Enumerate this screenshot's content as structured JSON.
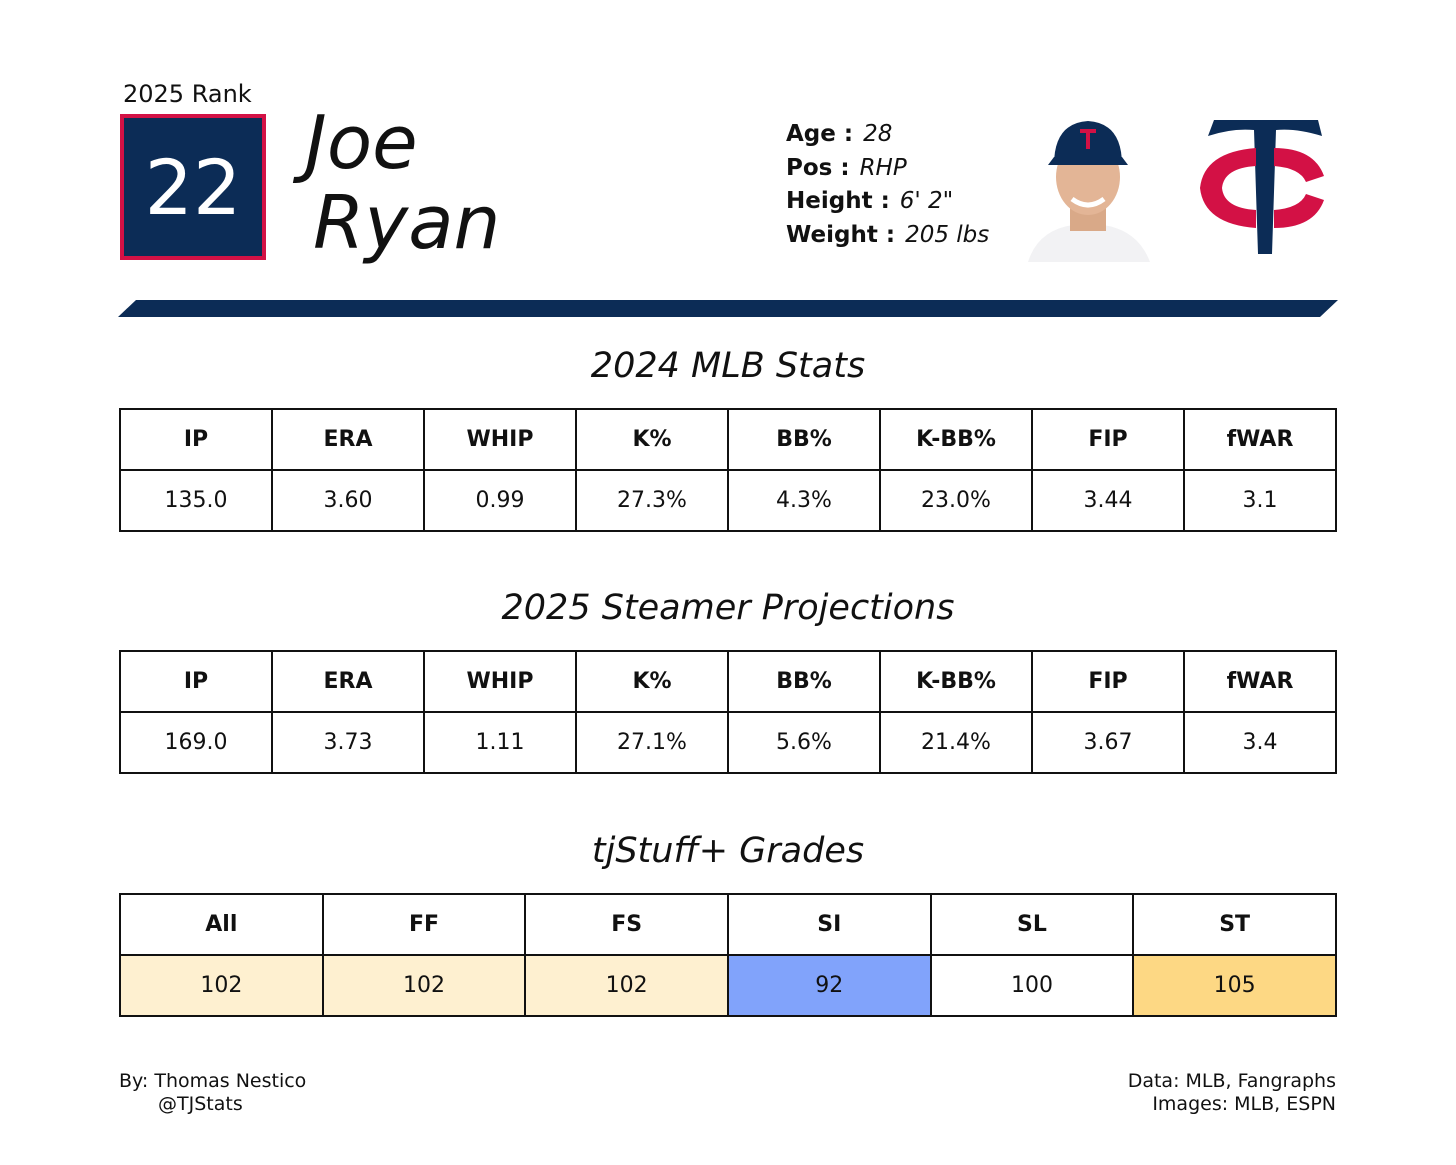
{
  "header": {
    "rank_label": "2025 Rank",
    "rank": "22",
    "first_name": "Joe",
    "last_name": "Ryan",
    "bio": [
      {
        "label": "Age :",
        "value": "28"
      },
      {
        "label": "Pos :",
        "value": "RHP"
      },
      {
        "label": "Height :",
        "value": "6' 2\""
      },
      {
        "label": "Weight :",
        "value": "205 lbs"
      }
    ]
  },
  "sections": [
    {
      "title": "2024 MLB Stats",
      "columns": [
        "IP",
        "ERA",
        "WHIP",
        "K%",
        "BB%",
        "K-BB%",
        "FIP",
        "fWAR"
      ],
      "row": [
        "135.0",
        "3.60",
        "0.99",
        "27.3%",
        "4.3%",
        "23.0%",
        "3.44",
        "3.1"
      ]
    },
    {
      "title": "2025 Steamer Projections",
      "columns": [
        "IP",
        "ERA",
        "WHIP",
        "K%",
        "BB%",
        "K-BB%",
        "FIP",
        "fWAR"
      ],
      "row": [
        "169.0",
        "3.73",
        "1.11",
        "27.1%",
        "5.6%",
        "21.4%",
        "3.67",
        "3.4"
      ]
    },
    {
      "title": "tjStuff+ Grades",
      "columns": [
        "All",
        "FF",
        "FS",
        "SI",
        "SL",
        "ST"
      ],
      "row": [
        "102",
        "102",
        "102",
        "92",
        "100",
        "105"
      ],
      "cell_colors": [
        "#fef0d0",
        "#fef0d0",
        "#fef0d0",
        "#81a3fb",
        "#ffffff",
        "#fdd884"
      ]
    }
  ],
  "footer": {
    "author": "By: Thomas Nestico",
    "handle": "@TJStats",
    "data_source": "Data: MLB, Fangraphs",
    "image_source": "Images: MLB, ESPN"
  }
}
